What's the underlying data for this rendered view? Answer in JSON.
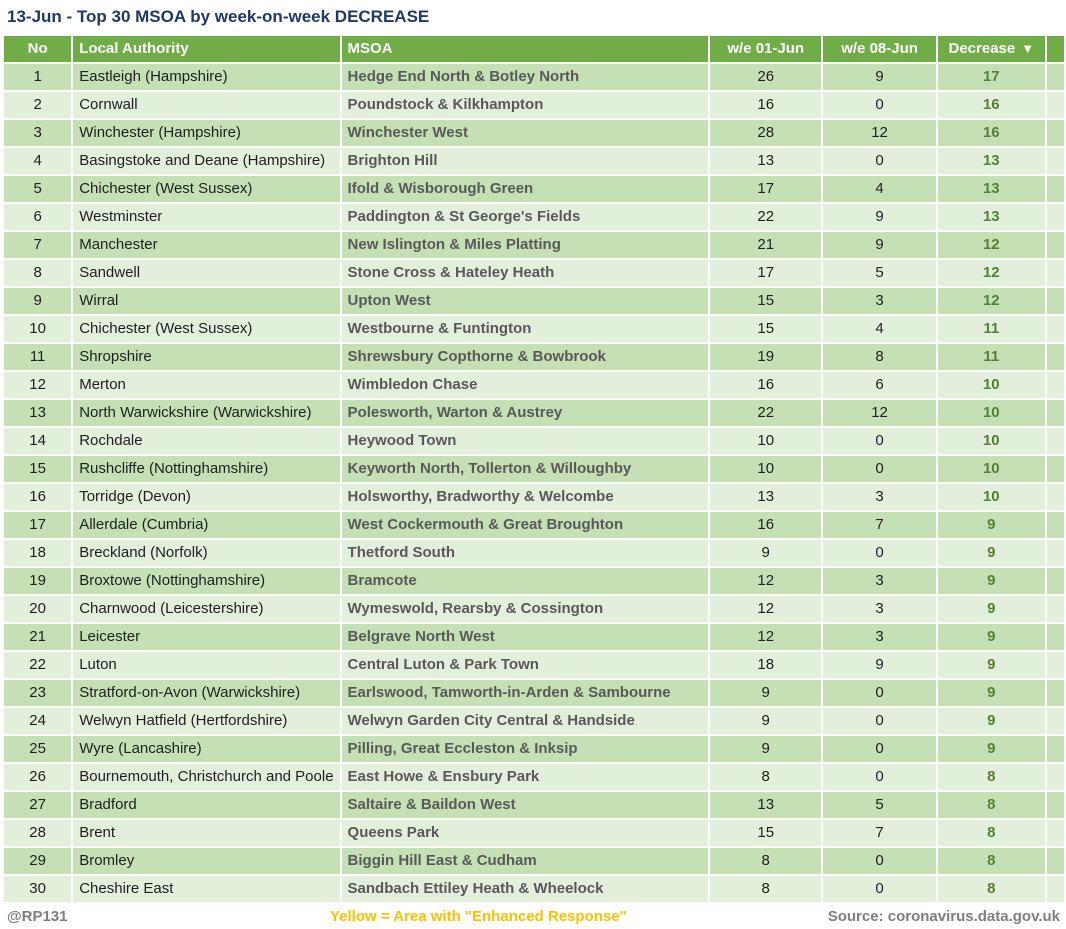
{
  "title": "13-Jun - Top 30 MSOA by week-on-week DECREASE",
  "colors": {
    "header_green": "#70AD47",
    "row_green_dark": "#C5E0B4",
    "row_green_light": "#E2EFDA",
    "decrease_text_green": "#548235",
    "msoa_text_gray": "#595959",
    "title_navy": "#1F3864",
    "note_yellow": "#FFC000",
    "footer_gray": "#7F7F7F"
  },
  "table": {
    "columns": {
      "no": "No",
      "local_authority": "Local Authority",
      "msoa": "MSOA",
      "we_01_jun": "w/e 01-Jun",
      "we_08_jun": "w/e 08-Jun",
      "decrease": "Decrease"
    },
    "sort_icon": "▼"
  },
  "chart_data": {
    "type": "table",
    "title": "13-Jun - Top 30 MSOA by week-on-week DECREASE",
    "columns": [
      "No",
      "Local Authority",
      "MSOA",
      "w/e 01-Jun",
      "w/e 08-Jun",
      "Decrease"
    ],
    "sorted_by": "Decrease descending",
    "rows": [
      {
        "no": "1",
        "local_authority": "Eastleigh (Hampshire)",
        "msoa": "Hedge End North & Botley North",
        "we_01_jun": "26",
        "we_08_jun": "9",
        "decrease": "17"
      },
      {
        "no": "2",
        "local_authority": "Cornwall",
        "msoa": "Poundstock & Kilkhampton",
        "we_01_jun": "16",
        "we_08_jun": "0",
        "decrease": "16"
      },
      {
        "no": "3",
        "local_authority": "Winchester (Hampshire)",
        "msoa": "Winchester West",
        "we_01_jun": "28",
        "we_08_jun": "12",
        "decrease": "16"
      },
      {
        "no": "4",
        "local_authority": "Basingstoke and Deane (Hampshire)",
        "msoa": "Brighton Hill",
        "we_01_jun": "13",
        "we_08_jun": "0",
        "decrease": "13"
      },
      {
        "no": "5",
        "local_authority": "Chichester (West Sussex)",
        "msoa": "Ifold & Wisborough Green",
        "we_01_jun": "17",
        "we_08_jun": "4",
        "decrease": "13"
      },
      {
        "no": "6",
        "local_authority": "Westminster",
        "msoa": "Paddington & St George's Fields",
        "we_01_jun": "22",
        "we_08_jun": "9",
        "decrease": "13"
      },
      {
        "no": "7",
        "local_authority": "Manchester",
        "msoa": "New Islington & Miles Platting",
        "we_01_jun": "21",
        "we_08_jun": "9",
        "decrease": "12"
      },
      {
        "no": "8",
        "local_authority": "Sandwell",
        "msoa": "Stone Cross & Hateley Heath",
        "we_01_jun": "17",
        "we_08_jun": "5",
        "decrease": "12"
      },
      {
        "no": "9",
        "local_authority": "Wirral",
        "msoa": "Upton West",
        "we_01_jun": "15",
        "we_08_jun": "3",
        "decrease": "12"
      },
      {
        "no": "10",
        "local_authority": "Chichester (West Sussex)",
        "msoa": "Westbourne & Funtington",
        "we_01_jun": "15",
        "we_08_jun": "4",
        "decrease": "11"
      },
      {
        "no": "11",
        "local_authority": "Shropshire",
        "msoa": "Shrewsbury Copthorne & Bowbrook",
        "we_01_jun": "19",
        "we_08_jun": "8",
        "decrease": "11"
      },
      {
        "no": "12",
        "local_authority": "Merton",
        "msoa": "Wimbledon Chase",
        "we_01_jun": "16",
        "we_08_jun": "6",
        "decrease": "10"
      },
      {
        "no": "13",
        "local_authority": "North Warwickshire (Warwickshire)",
        "msoa": "Polesworth, Warton & Austrey",
        "we_01_jun": "22",
        "we_08_jun": "12",
        "decrease": "10"
      },
      {
        "no": "14",
        "local_authority": "Rochdale",
        "msoa": "Heywood Town",
        "we_01_jun": "10",
        "we_08_jun": "0",
        "decrease": "10"
      },
      {
        "no": "15",
        "local_authority": "Rushcliffe (Nottinghamshire)",
        "msoa": "Keyworth North, Tollerton & Willoughby",
        "we_01_jun": "10",
        "we_08_jun": "0",
        "decrease": "10"
      },
      {
        "no": "16",
        "local_authority": "Torridge (Devon)",
        "msoa": "Holsworthy, Bradworthy & Welcombe",
        "we_01_jun": "13",
        "we_08_jun": "3",
        "decrease": "10"
      },
      {
        "no": "17",
        "local_authority": "Allerdale (Cumbria)",
        "msoa": "West Cockermouth & Great Broughton",
        "we_01_jun": "16",
        "we_08_jun": "7",
        "decrease": "9"
      },
      {
        "no": "18",
        "local_authority": "Breckland (Norfolk)",
        "msoa": "Thetford South",
        "we_01_jun": "9",
        "we_08_jun": "0",
        "decrease": "9"
      },
      {
        "no": "19",
        "local_authority": "Broxtowe (Nottinghamshire)",
        "msoa": "Bramcote",
        "we_01_jun": "12",
        "we_08_jun": "3",
        "decrease": "9"
      },
      {
        "no": "20",
        "local_authority": "Charnwood (Leicestershire)",
        "msoa": "Wymeswold, Rearsby & Cossington",
        "we_01_jun": "12",
        "we_08_jun": "3",
        "decrease": "9"
      },
      {
        "no": "21",
        "local_authority": "Leicester",
        "msoa": "Belgrave North West",
        "we_01_jun": "12",
        "we_08_jun": "3",
        "decrease": "9"
      },
      {
        "no": "22",
        "local_authority": "Luton",
        "msoa": "Central Luton & Park Town",
        "we_01_jun": "18",
        "we_08_jun": "9",
        "decrease": "9"
      },
      {
        "no": "23",
        "local_authority": "Stratford-on-Avon (Warwickshire)",
        "msoa": "Earlswood, Tamworth-in-Arden & Sambourne",
        "we_01_jun": "9",
        "we_08_jun": "0",
        "decrease": "9"
      },
      {
        "no": "24",
        "local_authority": "Welwyn Hatfield (Hertfordshire)",
        "msoa": "Welwyn Garden City Central & Handside",
        "we_01_jun": "9",
        "we_08_jun": "0",
        "decrease": "9"
      },
      {
        "no": "25",
        "local_authority": "Wyre (Lancashire)",
        "msoa": "Pilling, Great Eccleston & Inksip",
        "we_01_jun": "9",
        "we_08_jun": "0",
        "decrease": "9"
      },
      {
        "no": "26",
        "local_authority": "Bournemouth, Christchurch and Poole",
        "msoa": "East Howe & Ensbury Park",
        "we_01_jun": "8",
        "we_08_jun": "0",
        "decrease": "8"
      },
      {
        "no": "27",
        "local_authority": "Bradford",
        "msoa": "Saltaire & Baildon West",
        "we_01_jun": "13",
        "we_08_jun": "5",
        "decrease": "8"
      },
      {
        "no": "28",
        "local_authority": "Brent",
        "msoa": "Queens Park",
        "we_01_jun": "15",
        "we_08_jun": "7",
        "decrease": "8"
      },
      {
        "no": "29",
        "local_authority": "Bromley",
        "msoa": "Biggin Hill East & Cudham",
        "we_01_jun": "8",
        "we_08_jun": "0",
        "decrease": "8"
      },
      {
        "no": "30",
        "local_authority": "Cheshire East",
        "msoa": "Sandbach Ettiley Heath & Wheelock",
        "we_01_jun": "8",
        "we_08_jun": "0",
        "decrease": "8"
      }
    ]
  },
  "footer": {
    "handle": "@RP131",
    "note": "Yellow = Area with \"Enhanced Response\"",
    "source": "Source: coronavirus.data.gov.uk"
  }
}
